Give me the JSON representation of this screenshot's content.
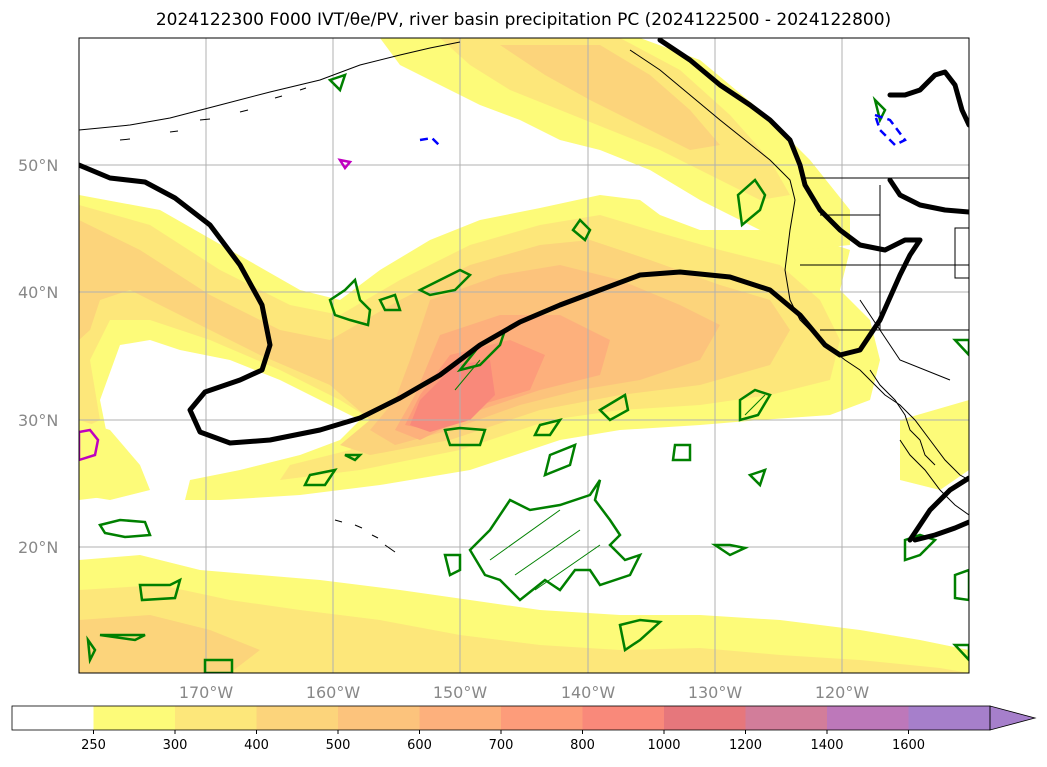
{
  "title": "2024122300 F000 IVT/θe/PV, river basin precipitation PC (2024122500 - 2024122800)",
  "map": {
    "latitude_labels": [
      "50°N",
      "40°N",
      "30°N",
      "20°N"
    ],
    "longitude_labels": [
      "170°W",
      "160°W",
      "150°W",
      "140°W",
      "130°W",
      "120°W"
    ],
    "label_color": "#888888",
    "contour_colors": {
      "ivt_thick_line": "#000000",
      "green_contours": "#008000",
      "blue_dashed": "#0000ff",
      "magenta": "#c000c0"
    }
  },
  "colorbar": {
    "ticks": [
      "250",
      "300",
      "400",
      "500",
      "600",
      "700",
      "800",
      "1000",
      "1200",
      "1400",
      "1600"
    ],
    "colors": [
      "#ffffff",
      "#fdfb79",
      "#fde77a",
      "#fcd47b",
      "#fcc37c",
      "#fdb07c",
      "#fd9c7a",
      "#f9897a",
      "#e6777c",
      "#d27d9a",
      "#bd78ba",
      "#a67fcb"
    ],
    "extend": "max"
  }
}
